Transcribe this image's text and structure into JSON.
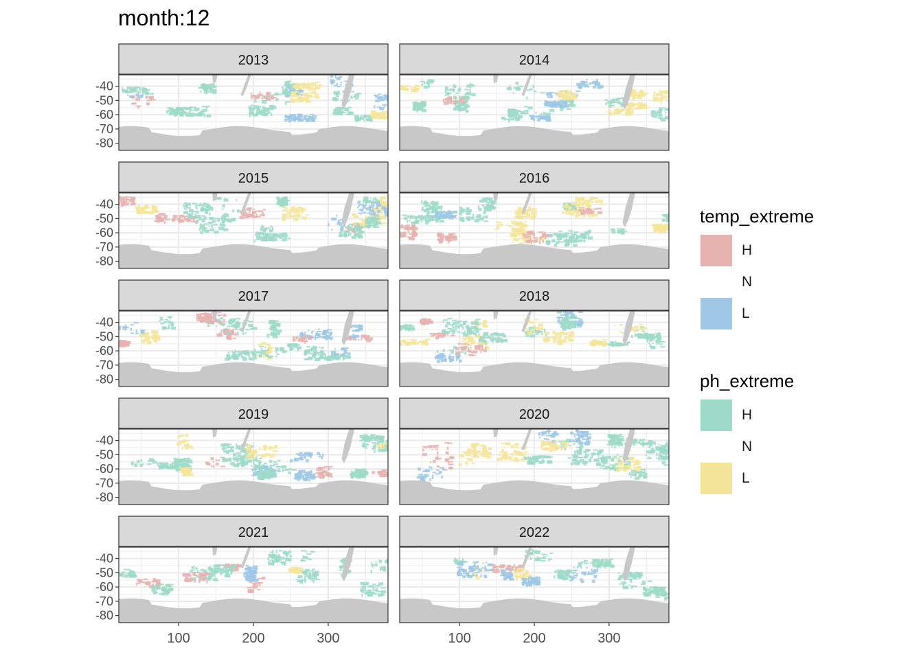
{
  "chart_data": {
    "type": "heatmap",
    "title": "month:12",
    "xlabel": "",
    "ylabel": "",
    "x_ticks": [
      100,
      200,
      300
    ],
    "y_ticks": [
      -40,
      -50,
      -60,
      -70,
      -80
    ],
    "xlim": [
      20,
      380
    ],
    "ylim": [
      -85,
      -32
    ],
    "facet_variable": "year",
    "facets": [
      "2013",
      "2014",
      "2015",
      "2016",
      "2017",
      "2018",
      "2019",
      "2020",
      "2021",
      "2022"
    ],
    "colors": {
      "temp_H": "#e6b3b0",
      "temp_L": "#9ec8e6",
      "ph_H": "#9ddbc8",
      "ph_L": "#f5e59a",
      "land": "#c8c8c8",
      "strip": "#d9d9d9",
      "grid": "#ebebeb"
    },
    "grid": true,
    "legend_position": "right",
    "legends": [
      {
        "title": "temp_extreme",
        "entries": [
          {
            "label": "H",
            "color": "#e6b3b0"
          },
          {
            "label": "N",
            "color": ""
          },
          {
            "label": "L",
            "color": "#9ec8e6"
          }
        ]
      },
      {
        "title": "ph_extreme",
        "entries": [
          {
            "label": "H",
            "color": "#9ddbc8"
          },
          {
            "label": "N",
            "color": ""
          },
          {
            "label": "L",
            "color": "#f5e59a"
          }
        ]
      }
    ]
  }
}
